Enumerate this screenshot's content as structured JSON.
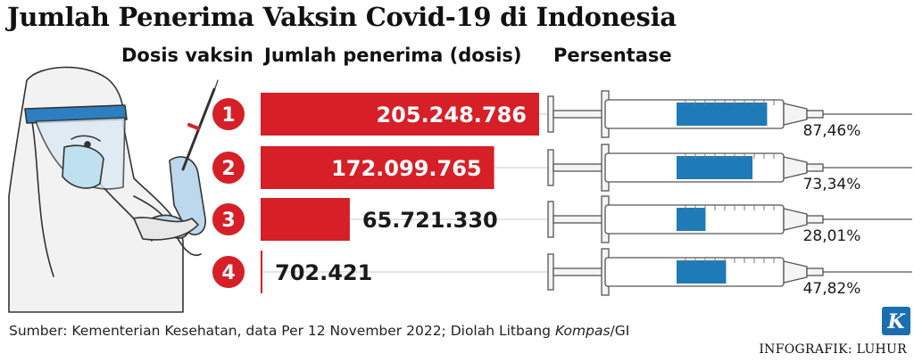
{
  "title": "Jumlah Penerima Vaksin Covid-19 di Indonesia",
  "columns": {
    "dose": "Dosis vaksin",
    "recipients": "Jumlah penerima (dosis)",
    "percentage": "Persentase"
  },
  "chart_data": {
    "type": "bar",
    "title": "Jumlah Penerima Vaksin Covid-19 di Indonesia",
    "xlabel": "Jumlah penerima (dosis)",
    "ylabel": "Dosis vaksin",
    "categories": [
      "1",
      "2",
      "3",
      "4"
    ],
    "values": [
      205248786,
      172099765,
      65721330,
      702421
    ],
    "value_labels": [
      "205.248.786",
      "172.099.765",
      "65.721.330",
      "702.421"
    ],
    "percentages": [
      87.46,
      73.34,
      28.01,
      47.82
    ],
    "percentage_labels": [
      "87,46%",
      "73,34%",
      "28,01%",
      "47,82%"
    ],
    "bar_color": "#d71f27",
    "fill_color": "#1f7ab8",
    "legend": "none",
    "grid": false
  },
  "source": {
    "prefix": "Sumber: Kementerian Kesehatan, data Per 12 November 2022; Diolah Litbang ",
    "italic": "Kompas",
    "suffix": "/GI"
  },
  "credit": "INFOGRAFIK: LUHUR",
  "logo": {
    "letter": "K",
    "color": "#1a6fb0"
  },
  "illustration_icon": "health-worker-with-syringe-icon"
}
